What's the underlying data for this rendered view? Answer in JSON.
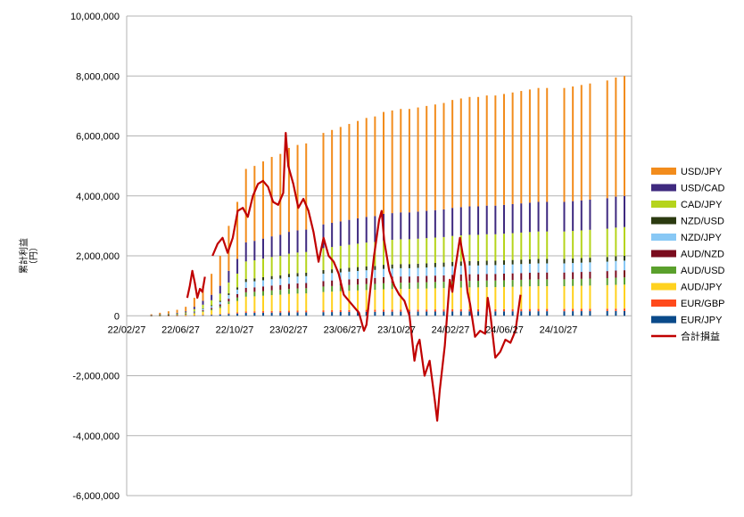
{
  "chart_data": {
    "type": "bar",
    "ylabel": "累計利益\n（円）",
    "ylim": [
      -6000000,
      10000000
    ],
    "y_ticks": [
      "10,000,000",
      "8,000,000",
      "6,000,000",
      "4,000,000",
      "2,000,000",
      "0",
      "-2,000,000",
      "-4,000,000",
      "-6,000,000"
    ],
    "x_ticks": [
      "22/02/27",
      "22/06/27",
      "22/10/27",
      "23/02/27",
      "23/06/27",
      "23/10/27",
      "24/02/27",
      "24/06/27",
      "24/10/27"
    ],
    "grid": true,
    "legend_position": "right",
    "legend": [
      {
        "label": "USD/JPY",
        "color": "#f28c1c",
        "kind": "bar"
      },
      {
        "label": "USD/CAD",
        "color": "#3f2a7f",
        "kind": "bar"
      },
      {
        "label": "CAD/JPY",
        "color": "#b5d41c",
        "kind": "bar"
      },
      {
        "label": "NZD/USD",
        "color": "#2b3a10",
        "kind": "bar"
      },
      {
        "label": "NZD/JPY",
        "color": "#88c8f5",
        "kind": "bar"
      },
      {
        "label": "AUD/NZD",
        "color": "#7a0c1e",
        "kind": "bar"
      },
      {
        "label": "AUD/USD",
        "color": "#5aa02c",
        "kind": "bar"
      },
      {
        "label": "AUD/JPY",
        "color": "#ffd21f",
        "kind": "bar"
      },
      {
        "label": "EUR/GBP",
        "color": "#ff4a1c",
        "kind": "bar"
      },
      {
        "label": "EUR/JPY",
        "color": "#0a4a8a",
        "kind": "bar"
      },
      {
        "label": "合計損益",
        "color": "#c00000",
        "kind": "line"
      }
    ],
    "bar_totals_approx": [
      0,
      50000,
      100000,
      150000,
      200000,
      300000,
      600000,
      1000000,
      1400000,
      2000000,
      3000000,
      3800000,
      4900000,
      5000000,
      5150000,
      5300000,
      5400000,
      5600000,
      5700000,
      5750000,
      null,
      6100000,
      6200000,
      6300000,
      6400000,
      6500000,
      6600000,
      6650000,
      6800000,
      6850000,
      6900000,
      6900000,
      6950000,
      7000000,
      7050000,
      7100000,
      7200000,
      7250000,
      7300000,
      7300000,
      7350000,
      7350000,
      7400000,
      7450000,
      7500000,
      7550000,
      7600000,
      7600000,
      null,
      7600000,
      7650000,
      7700000,
      7750000,
      null,
      7850000,
      7950000,
      8000000
    ],
    "total_pnl_approx": [
      [
        0.12,
        600000
      ],
      [
        0.125,
        1000000
      ],
      [
        0.13,
        1500000
      ],
      [
        0.135,
        1100000
      ],
      [
        0.14,
        600000
      ],
      [
        0.145,
        900000
      ],
      [
        0.15,
        800000
      ],
      [
        0.155,
        1300000
      ],
      [
        0.17,
        2000000
      ],
      [
        0.18,
        2400000
      ],
      [
        0.19,
        2600000
      ],
      [
        0.2,
        2100000
      ],
      [
        0.21,
        2600000
      ],
      [
        0.22,
        3500000
      ],
      [
        0.23,
        3600000
      ],
      [
        0.24,
        3300000
      ],
      [
        0.25,
        4000000
      ],
      [
        0.26,
        4400000
      ],
      [
        0.27,
        4500000
      ],
      [
        0.28,
        4300000
      ],
      [
        0.29,
        3800000
      ],
      [
        0.3,
        3700000
      ],
      [
        0.31,
        4100000
      ],
      [
        0.315,
        6100000
      ],
      [
        0.32,
        5000000
      ],
      [
        0.33,
        4400000
      ],
      [
        0.34,
        3600000
      ],
      [
        0.35,
        3900000
      ],
      [
        0.36,
        3500000
      ],
      [
        0.37,
        2800000
      ],
      [
        0.38,
        1800000
      ],
      [
        0.39,
        2600000
      ],
      [
        0.4,
        2000000
      ],
      [
        0.41,
        1800000
      ],
      [
        0.42,
        1400000
      ],
      [
        0.43,
        700000
      ],
      [
        0.44,
        500000
      ],
      [
        0.45,
        300000
      ],
      [
        0.46,
        100000
      ],
      [
        0.47,
        -500000
      ],
      [
        0.475,
        -300000
      ],
      [
        0.48,
        500000
      ],
      [
        0.49,
        2000000
      ],
      [
        0.5,
        3200000
      ],
      [
        0.505,
        3500000
      ],
      [
        0.51,
        2500000
      ],
      [
        0.52,
        1500000
      ],
      [
        0.53,
        1000000
      ],
      [
        0.54,
        700000
      ],
      [
        0.55,
        500000
      ],
      [
        0.56,
        0
      ],
      [
        0.57,
        -1500000
      ],
      [
        0.575,
        -1000000
      ],
      [
        0.58,
        -800000
      ],
      [
        0.59,
        -2000000
      ],
      [
        0.6,
        -1500000
      ],
      [
        0.61,
        -2800000
      ],
      [
        0.615,
        -3500000
      ],
      [
        0.62,
        -2500000
      ],
      [
        0.63,
        -1000000
      ],
      [
        0.64,
        1200000
      ],
      [
        0.645,
        800000
      ],
      [
        0.65,
        1500000
      ],
      [
        0.66,
        2600000
      ],
      [
        0.665,
        2100000
      ],
      [
        0.67,
        1700000
      ],
      [
        0.675,
        800000
      ],
      [
        0.68,
        400000
      ],
      [
        0.69,
        -700000
      ],
      [
        0.7,
        -500000
      ],
      [
        0.71,
        -600000
      ],
      [
        0.715,
        600000
      ],
      [
        0.72,
        100000
      ],
      [
        0.73,
        -1400000
      ],
      [
        0.74,
        -1200000
      ],
      [
        0.75,
        -800000
      ],
      [
        0.76,
        -900000
      ],
      [
        0.77,
        -500000
      ],
      [
        0.78,
        700000
      ]
    ]
  }
}
